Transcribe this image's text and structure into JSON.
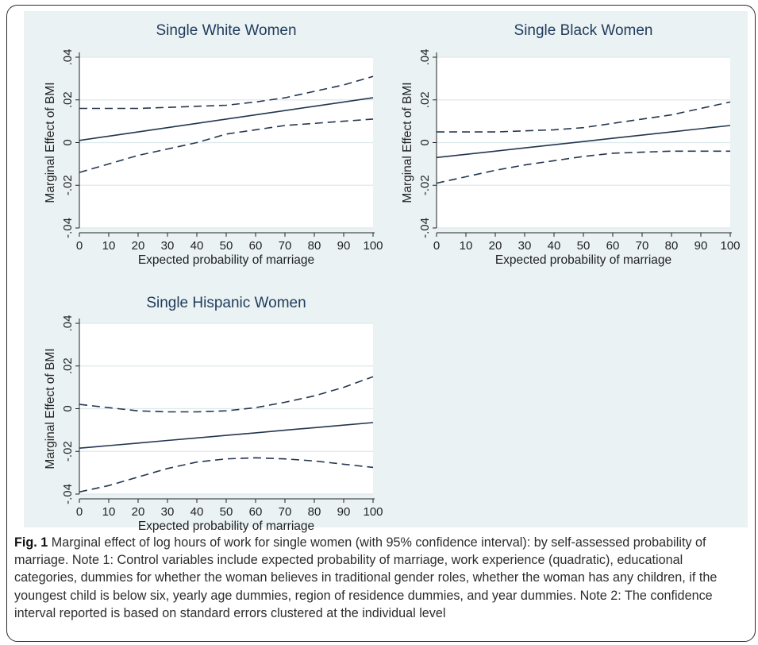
{
  "caption": {
    "label": "Fig. 1",
    "text": " Marginal effect of log hours of work for single women (with 95% confidence interval): by self-assessed probability of marriage. Note 1: Control variables include expected probability of marriage, work experience (quadratic), educational categories, dummies for whether the woman believes in traditional gender roles, whether the woman has any children, if the youngest child is below six, yearly age dummies, region of residence dummies, and year dummies. Note 2: The confidence interval reported is based on standard errors clustered at the individual level"
  },
  "colors": {
    "panel_background": "#eaf2f3",
    "plot_background": "#ffffff",
    "title_color": "#1f3b5c",
    "line_color": "#24364f",
    "grid_color": "#dde9ec"
  },
  "chart_data": [
    {
      "type": "line",
      "title": "Single White Women",
      "xlabel": "Expected probability of marriage",
      "ylabel": "Marginal Effect of BMI",
      "xlim": [
        0,
        100
      ],
      "ylim": [
        -0.04,
        0.04
      ],
      "xticks": [
        "0",
        "10",
        "20",
        "30",
        "40",
        "50",
        "60",
        "70",
        "80",
        "90",
        "100"
      ],
      "yticks": [
        "-.04",
        "-.02",
        "0",
        ".02",
        ".04"
      ],
      "grid": true,
      "x": [
        0,
        10,
        20,
        30,
        40,
        50,
        60,
        70,
        80,
        90,
        100
      ],
      "series": [
        {
          "style": "solid",
          "values": [
            0.001,
            0.003,
            0.005,
            0.007,
            0.009,
            0.011,
            0.013,
            0.015,
            0.017,
            0.019,
            0.021
          ]
        },
        {
          "style": "dashed",
          "values": [
            0.016,
            0.016,
            0.016,
            0.0165,
            0.017,
            0.0175,
            0.019,
            0.021,
            0.024,
            0.027,
            0.031
          ]
        },
        {
          "style": "dashed",
          "values": [
            -0.014,
            -0.01,
            -0.006,
            -0.003,
            0.0,
            0.004,
            0.006,
            0.008,
            0.009,
            0.01,
            0.011
          ]
        }
      ]
    },
    {
      "type": "line",
      "title": "Single Black Women",
      "xlabel": "Expected probability of marriage",
      "ylabel": "Marginal Effect of BMI",
      "xlim": [
        0,
        100
      ],
      "ylim": [
        -0.04,
        0.04
      ],
      "xticks": [
        "0",
        "10",
        "20",
        "30",
        "40",
        "50",
        "60",
        "70",
        "80",
        "90",
        "100"
      ],
      "yticks": [
        "-.04",
        "-.02",
        "0",
        ".02",
        ".04"
      ],
      "grid": true,
      "x": [
        0,
        10,
        20,
        30,
        40,
        50,
        60,
        70,
        80,
        90,
        100
      ],
      "series": [
        {
          "style": "solid",
          "values": [
            -0.007,
            -0.0055,
            -0.004,
            -0.0025,
            -0.001,
            0.0005,
            0.002,
            0.0035,
            0.005,
            0.0065,
            0.008
          ]
        },
        {
          "style": "dashed",
          "values": [
            0.005,
            0.005,
            0.005,
            0.0055,
            0.006,
            0.007,
            0.009,
            0.011,
            0.013,
            0.016,
            0.019
          ]
        },
        {
          "style": "dashed",
          "values": [
            -0.019,
            -0.016,
            -0.013,
            -0.0105,
            -0.0085,
            -0.0065,
            -0.005,
            -0.0045,
            -0.004,
            -0.004,
            -0.004
          ]
        }
      ]
    },
    {
      "type": "line",
      "title": "Single Hispanic Women",
      "xlabel": "Expected probability of marriage",
      "ylabel": "Marginal Effect of BMI",
      "xlim": [
        0,
        100
      ],
      "ylim": [
        -0.04,
        0.04
      ],
      "xticks": [
        "0",
        "10",
        "20",
        "30",
        "40",
        "50",
        "60",
        "70",
        "80",
        "90",
        "100"
      ],
      "yticks": [
        "-.04",
        "-.02",
        "0",
        ".02",
        ".04"
      ],
      "grid": true,
      "x": [
        0,
        10,
        20,
        30,
        40,
        50,
        60,
        70,
        80,
        90,
        100
      ],
      "series": [
        {
          "style": "solid",
          "values": [
            -0.0185,
            -0.0173,
            -0.0161,
            -0.0149,
            -0.0137,
            -0.0125,
            -0.0113,
            -0.0101,
            -0.0089,
            -0.0077,
            -0.0065
          ]
        },
        {
          "style": "dashed",
          "values": [
            0.002,
            0.0005,
            -0.001,
            -0.0015,
            -0.0015,
            -0.001,
            0.0005,
            0.003,
            0.006,
            0.01,
            0.015
          ]
        },
        {
          "style": "dashed",
          "values": [
            -0.039,
            -0.036,
            -0.032,
            -0.028,
            -0.025,
            -0.0235,
            -0.023,
            -0.0235,
            -0.0245,
            -0.026,
            -0.0275
          ]
        }
      ]
    }
  ]
}
